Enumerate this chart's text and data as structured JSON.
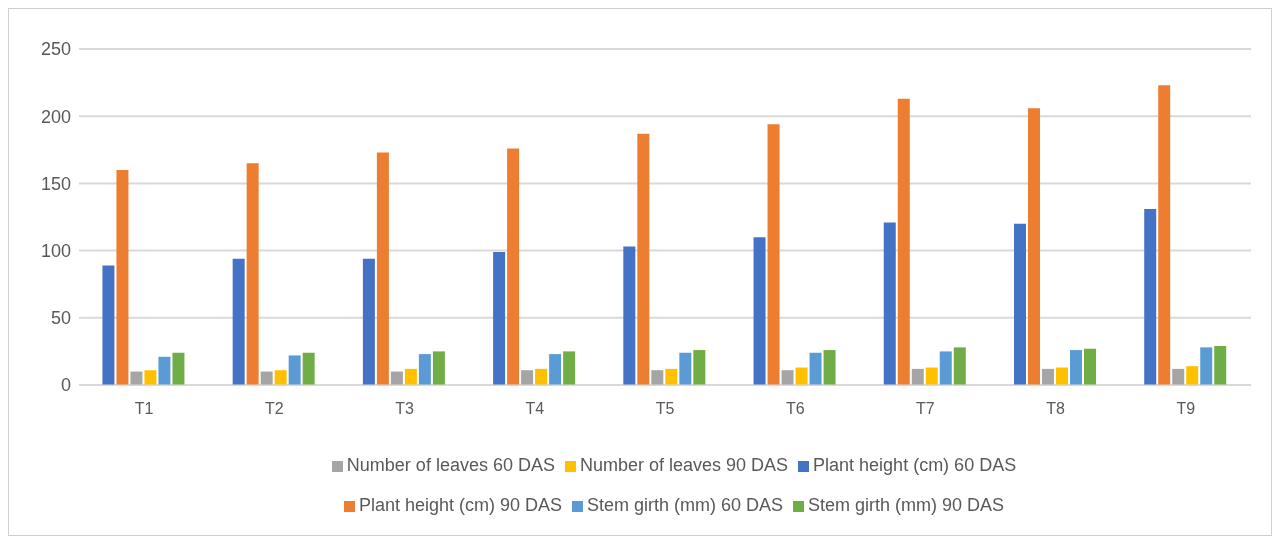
{
  "chart_data": {
    "type": "bar",
    "categories": [
      "T1",
      "T2",
      "T3",
      "T4",
      "T5",
      "T6",
      "T7",
      "T8",
      "T9"
    ],
    "series": [
      {
        "name": "Plant height (cm) 60 DAS",
        "color": "#4472c4",
        "values": [
          89,
          94,
          94,
          99,
          103,
          110,
          121,
          120,
          131
        ]
      },
      {
        "name": "Plant height (cm) 90 DAS",
        "color": "#ed7d31",
        "values": [
          160,
          165,
          173,
          176,
          187,
          194,
          213,
          206,
          223
        ]
      },
      {
        "name": "Number of leaves 60 DAS",
        "color": "#a5a5a5",
        "values": [
          10,
          10,
          10,
          11,
          11,
          11,
          12,
          12,
          12
        ]
      },
      {
        "name": "Number of leaves 90 DAS",
        "color": "#ffc000",
        "values": [
          11,
          11,
          12,
          12,
          12,
          13,
          13,
          13,
          14
        ]
      },
      {
        "name": "Stem girth (mm) 60 DAS",
        "color": "#5b9bd5",
        "values": [
          21,
          22,
          23,
          23,
          24,
          24,
          25,
          26,
          28
        ]
      },
      {
        "name": "Stem girth (mm) 90 DAS",
        "color": "#70ad47",
        "values": [
          24,
          24,
          25,
          25,
          26,
          26,
          28,
          27,
          29
        ]
      }
    ],
    "ylim": [
      0,
      250
    ],
    "yticks": [
      0,
      50,
      100,
      150,
      200,
      250
    ],
    "grid": "y",
    "legend": "bottom"
  }
}
